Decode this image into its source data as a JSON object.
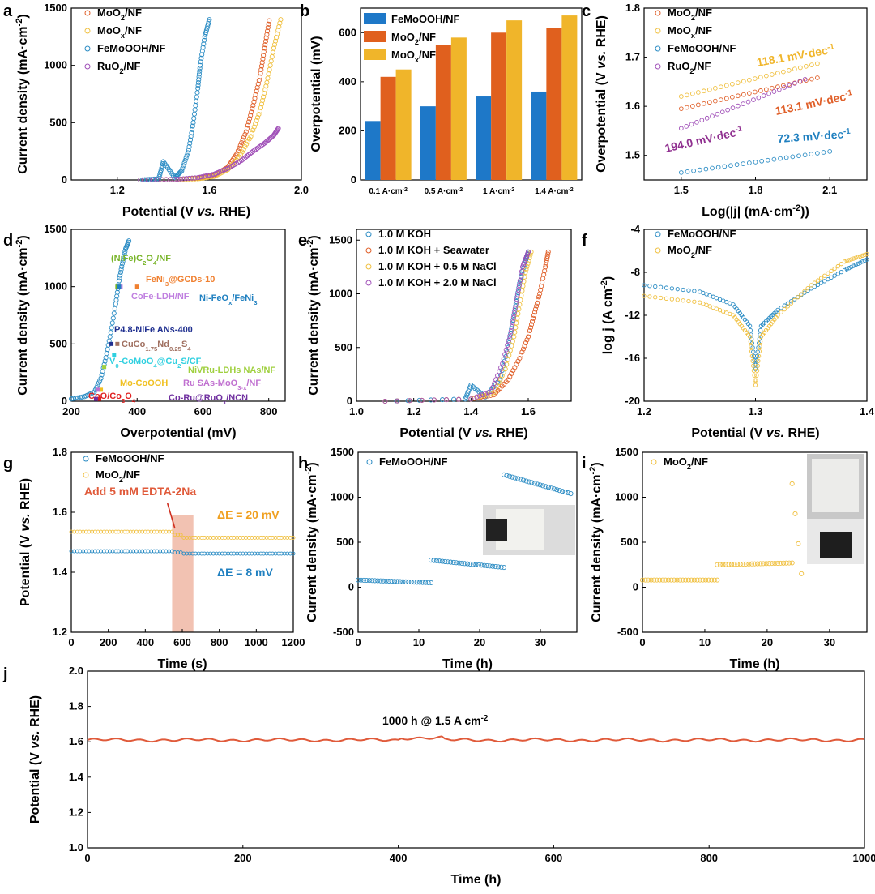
{
  "panel_letters": [
    "a",
    "b",
    "c",
    "d",
    "e",
    "f",
    "g",
    "h",
    "i",
    "j"
  ],
  "chart_data": [
    {
      "id": "a",
      "type": "scatter",
      "xlabel": "Potential (V vs. RHE)",
      "ylabel": "Current density (mA·cm⁻²)",
      "xlim": [
        1.0,
        2.0
      ],
      "ylim": [
        0,
        1500
      ],
      "xticks": [
        "1.2",
        "1.6",
        "2.0"
      ],
      "yticks": [
        "0",
        "500",
        "1000",
        "1500"
      ],
      "legend_placement": "top-left",
      "series": [
        {
          "name": "MoO₂/NF",
          "color": "#e0602a",
          "x": [
            1.3,
            1.45,
            1.55,
            1.62,
            1.68,
            1.72,
            1.76,
            1.79,
            1.82,
            1.84,
            1.86
          ],
          "y": [
            0,
            5,
            15,
            40,
            110,
            230,
            420,
            650,
            900,
            1150,
            1390
          ]
        },
        {
          "name": "MoOₓ/NF",
          "color": "#f0c040",
          "x": [
            1.3,
            1.45,
            1.55,
            1.62,
            1.68,
            1.73,
            1.78,
            1.82,
            1.85,
            1.88,
            1.91
          ],
          "y": [
            0,
            5,
            10,
            30,
            90,
            200,
            380,
            600,
            850,
            1150,
            1400
          ]
        },
        {
          "name": "FeMoOOH/NF",
          "color": "#2b8cc4",
          "x": [
            1.3,
            1.38,
            1.4,
            1.45,
            1.48,
            1.51,
            1.53,
            1.55,
            1.56,
            1.58,
            1.6
          ],
          "y": [
            0,
            10,
            160,
            20,
            80,
            260,
            500,
            800,
            1000,
            1250,
            1400
          ]
        },
        {
          "name": "RuO₂/NF",
          "color": "#a050b8",
          "x": [
            1.3,
            1.45,
            1.55,
            1.62,
            1.68,
            1.74,
            1.79,
            1.84,
            1.88,
            1.9
          ],
          "y": [
            0,
            5,
            20,
            50,
            100,
            170,
            250,
            320,
            390,
            450
          ]
        }
      ]
    },
    {
      "id": "b",
      "type": "bar",
      "ylabel": "Overpotential (mV)",
      "ylim": [
        0,
        700
      ],
      "yticks": [
        "0",
        "200",
        "400",
        "600"
      ],
      "categories": [
        "0.1 A·cm⁻²",
        "0.5 A·cm⁻²",
        "1 A·cm⁻²",
        "1.4 A·cm⁻²"
      ],
      "legend_placement": "top-left",
      "series": [
        {
          "name": "FeMoOOH/NF",
          "color": "#1e78c8",
          "values": [
            240,
            300,
            340,
            360
          ]
        },
        {
          "name": "MoO₂/NF",
          "color": "#e0601e",
          "values": [
            420,
            550,
            600,
            620
          ]
        },
        {
          "name": "MoOₓ/NF",
          "color": "#f0b52a",
          "values": [
            450,
            580,
            650,
            670
          ]
        }
      ]
    },
    {
      "id": "c",
      "type": "scatter",
      "xlabel": "Log(|j| (mA·cm⁻²))",
      "ylabel": "Overpotential (V vs. RHE)",
      "xlim": [
        1.35,
        2.25
      ],
      "ylim": [
        1.45,
        1.8
      ],
      "xticks": [
        "1.5",
        "1.8",
        "2.1"
      ],
      "yticks": [
        "1.5",
        "1.6",
        "1.7",
        "1.8"
      ],
      "legend_placement": "top-left",
      "series": [
        {
          "name": "MoO₂/NF",
          "color": "#e0602a",
          "slope": "113.1 mV·dec⁻¹",
          "x": [
            1.5,
            2.05
          ],
          "y": [
            1.595,
            1.658
          ]
        },
        {
          "name": "MoOₓ/NF",
          "color": "#f0c040",
          "slope": "118.1 mV·dec⁻¹",
          "x": [
            1.5,
            2.05
          ],
          "y": [
            1.62,
            1.687
          ]
        },
        {
          "name": "FeMoOOH/NF",
          "color": "#2b8cc4",
          "slope": "72.3 mV·dec⁻¹",
          "x": [
            1.5,
            2.1
          ],
          "y": [
            1.465,
            1.508
          ]
        },
        {
          "name": "RuO₂/NF",
          "color": "#a050b8",
          "slope": "194.0 mV·dec⁻¹",
          "x": [
            1.5,
            2.0
          ],
          "y": [
            1.555,
            1.655
          ]
        }
      ]
    },
    {
      "id": "d",
      "type": "scatter",
      "xlabel": "Overpotential (mV)",
      "ylabel": "Current density (mA·cm⁻²)",
      "xlim": [
        200,
        850
      ],
      "ylim": [
        0,
        1500
      ],
      "xticks": [
        "200",
        "400",
        "600",
        "800"
      ],
      "yticks": [
        "0",
        "500",
        "1000",
        "1500"
      ],
      "curve": {
        "color": "#2b8cc4",
        "x": [
          200,
          240,
          270,
          290,
          305,
          320,
          335,
          345,
          355,
          365,
          375
        ],
        "y": [
          20,
          40,
          80,
          200,
          380,
          600,
          850,
          1050,
          1200,
          1330,
          1400
        ]
      },
      "references": [
        {
          "label": "(NiFe)C₂O₄/NF",
          "color": "#78b428",
          "x": 340,
          "y": 1000
        },
        {
          "label": "FeNi₃@GCDs-10",
          "color": "#f08030",
          "x": 400,
          "y": 1000
        },
        {
          "label": "CoFe-LDH/NF",
          "color": "#c080e0",
          "x": 350,
          "y": 1000
        },
        {
          "label": "Ni-FeOₓ/FeNi₃",
          "color": "#2080c0",
          "x": 345,
          "y": 1000
        },
        {
          "label": "P4.8-NiFe ANs-400",
          "color": "#203090",
          "x": 322,
          "y": 500
        },
        {
          "label": "CuCo₁.₇₅Nd₀.₂₅S₄",
          "color": "#a07060",
          "x": 340,
          "y": 500
        },
        {
          "label": "V₀-CoMoO₄@Cu₂S/CF",
          "color": "#30d0e0",
          "x": 330,
          "y": 400
        },
        {
          "label": "NiVRu-LDHs NAs/NF",
          "color": "#a0d040",
          "x": 300,
          "y": 300
        },
        {
          "label": "Mo-CoOOH",
          "color": "#f0c020",
          "x": 290,
          "y": 100
        },
        {
          "label": "Ru SAs-MoO₃₋ₓ/NF",
          "color": "#c070d0",
          "x": 280,
          "y": 100
        },
        {
          "label": "CoO/Co₃O₄",
          "color": "#e02020",
          "x": 285,
          "y": 20
        },
        {
          "label": "Co-Ru@RuOₓ/NCN",
          "color": "#7030a0",
          "x": 275,
          "y": 20
        }
      ]
    },
    {
      "id": "e",
      "type": "scatter",
      "xlabel": "Potential (V vs. RHE)",
      "ylabel": "Current density (mA·cm⁻²)",
      "xlim": [
        1.0,
        1.75
      ],
      "ylim": [
        0,
        1600
      ],
      "xticks": [
        "1.0",
        "1.2",
        "1.4",
        "1.6"
      ],
      "yticks": [
        "0",
        "500",
        "1000",
        "1500"
      ],
      "legend_placement": "top-left",
      "series": [
        {
          "name": "1.0 M KOH",
          "color": "#2b8cc4",
          "x": [
            1.1,
            1.38,
            1.4,
            1.45,
            1.5,
            1.53,
            1.55,
            1.57,
            1.59,
            1.6
          ],
          "y": [
            0,
            20,
            150,
            40,
            200,
            500,
            800,
            1100,
            1300,
            1390
          ]
        },
        {
          "name": "1.0 M KOH + Seawater",
          "color": "#e0602a",
          "x": [
            1.1,
            1.4,
            1.48,
            1.53,
            1.57,
            1.6,
            1.62,
            1.64,
            1.66,
            1.67
          ],
          "y": [
            0,
            20,
            60,
            200,
            400,
            600,
            800,
            1000,
            1250,
            1390
          ]
        },
        {
          "name": "1.0 M KOH + 0.5 M NaCl",
          "color": "#f0c040",
          "x": [
            1.1,
            1.4,
            1.48,
            1.52,
            1.55,
            1.57,
            1.59,
            1.61
          ],
          "y": [
            0,
            20,
            80,
            300,
            600,
            900,
            1200,
            1390
          ]
        },
        {
          "name": "1.0 M KOH + 2.0 M NaCl",
          "color": "#a050b8",
          "x": [
            1.1,
            1.4,
            1.47,
            1.51,
            1.54,
            1.56,
            1.58,
            1.6
          ],
          "y": [
            0,
            20,
            90,
            350,
            650,
            950,
            1250,
            1390
          ]
        }
      ]
    },
    {
      "id": "f",
      "type": "scatter",
      "xlabel": "Potential (V vs. RHE)",
      "ylabel": "log j (A cm⁻²)",
      "xlim": [
        1.2,
        1.4
      ],
      "ylim": [
        -20,
        -4
      ],
      "xticks": [
        "1.2",
        "1.3",
        "1.4"
      ],
      "yticks": [
        "-4",
        "-8",
        "-12",
        "-16",
        "-20"
      ],
      "legend_placement": "top-left",
      "series": [
        {
          "name": "FeMoOOH/NF",
          "color": "#2b8cc4",
          "x": [
            1.2,
            1.25,
            1.28,
            1.295,
            1.3,
            1.305,
            1.32,
            1.35,
            1.38,
            1.4
          ],
          "y": [
            -9.2,
            -9.8,
            -11,
            -13,
            -17,
            -13,
            -11.5,
            -9.5,
            -7.8,
            -6.8
          ]
        },
        {
          "name": "MoO₂/NF",
          "color": "#f0c040",
          "x": [
            1.2,
            1.25,
            1.28,
            1.295,
            1.3,
            1.305,
            1.32,
            1.35,
            1.38,
            1.4
          ],
          "y": [
            -10.2,
            -10.8,
            -12,
            -14,
            -18.5,
            -14,
            -12,
            -9.2,
            -7,
            -6.3
          ]
        }
      ]
    },
    {
      "id": "g",
      "type": "scatter",
      "xlabel": "Time (s)",
      "ylabel": "Potential (V vs. RHE)",
      "xlim": [
        0,
        1200
      ],
      "ylim": [
        1.2,
        1.8
      ],
      "xticks": [
        "0",
        "200",
        "400",
        "600",
        "800",
        "1000",
        "1200"
      ],
      "yticks": [
        "1.2",
        "1.4",
        "1.6",
        "1.8"
      ],
      "legend_placement": "top-left",
      "annotations": [
        "Add 5 mM EDTA-2Na",
        "ΔE = 20 mV",
        "ΔE = 8 mV"
      ],
      "series": [
        {
          "name": "FeMoOOH/NF",
          "color": "#2b8cc4",
          "before": 1.47,
          "after": 1.462
        },
        {
          "name": "MoO₂/NF",
          "color": "#f0c040",
          "before": 1.535,
          "after": 1.515
        }
      ]
    },
    {
      "id": "h",
      "type": "scatter",
      "xlabel": "Time (h)",
      "ylabel": "Current density (mA·cm⁻²)",
      "xlim": [
        0,
        36
      ],
      "ylim": [
        -500,
        1500
      ],
      "xticks": [
        "0",
        "10",
        "20",
        "30"
      ],
      "yticks": [
        "-500",
        "0",
        "500",
        "1000",
        "1500"
      ],
      "legend_placement": "top-left",
      "series": [
        {
          "name": "FeMoOOH/NF",
          "color": "#2b8cc4",
          "segments": [
            [
              0,
              12,
              80,
              50
            ],
            [
              12,
              24,
              300,
              220
            ],
            [
              24,
              35,
              1250,
              1040
            ]
          ]
        }
      ]
    },
    {
      "id": "i",
      "type": "scatter",
      "xlabel": "Time (h)",
      "ylabel": "Current density (mA·cm⁻²)",
      "xlim": [
        0,
        36
      ],
      "ylim": [
        -500,
        1500
      ],
      "xticks": [
        "0",
        "10",
        "20",
        "30"
      ],
      "yticks": [
        "-500",
        "0",
        "500",
        "1000",
        "1500"
      ],
      "legend_placement": "top-left",
      "series": [
        {
          "name": "MoO₂/NF",
          "color": "#f0c040",
          "segments": [
            [
              0,
              12,
              80,
              80
            ],
            [
              12,
              24,
              250,
              270
            ],
            [
              24,
              25.5,
              1150,
              150
            ]
          ]
        }
      ]
    },
    {
      "id": "j",
      "type": "line",
      "xlabel": "Time (h)",
      "ylabel": "Potential (V vs. RHE)",
      "xlim": [
        0,
        1000
      ],
      "ylim": [
        1.0,
        2.0
      ],
      "xticks": [
        "0",
        "200",
        "400",
        "600",
        "800",
        "1000"
      ],
      "yticks": [
        "1.0",
        "1.2",
        "1.4",
        "1.6",
        "1.8",
        "2.0"
      ],
      "annotation": "1000 h @ 1.5 A cm⁻²",
      "series": [
        {
          "name": "",
          "color": "#e05a3a",
          "mean": 1.61
        }
      ]
    }
  ],
  "labels": {
    "c_slopes": [
      "118.1 mV·dec⁻¹",
      "113.1 mV·dec⁻¹",
      "194.0 mV·dec⁻¹",
      "72.3 mV·dec⁻¹"
    ]
  }
}
